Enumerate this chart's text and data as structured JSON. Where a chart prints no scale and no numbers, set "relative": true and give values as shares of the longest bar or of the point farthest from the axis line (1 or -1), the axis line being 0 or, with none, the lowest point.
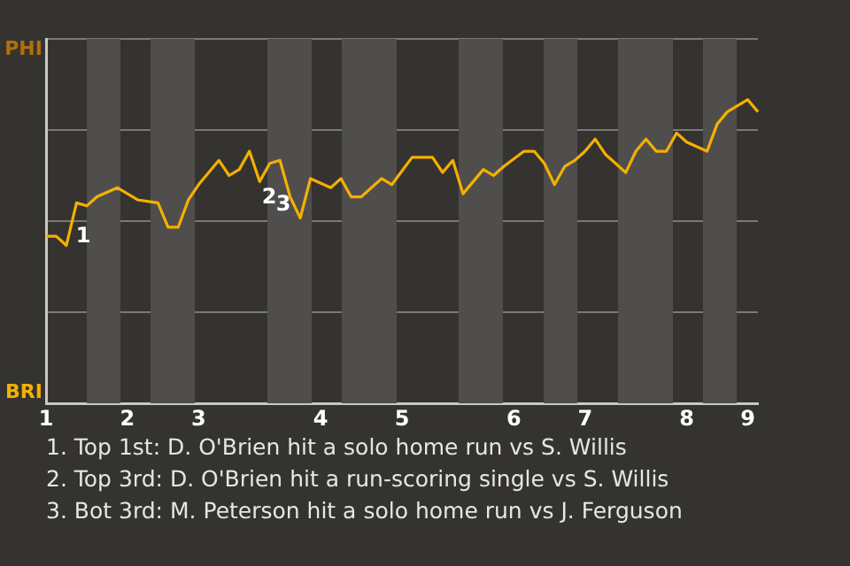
{
  "chart_data": {
    "type": "line",
    "categories": [
      "1",
      null,
      null,
      null,
      null,
      null,
      null,
      null,
      "2",
      null,
      null,
      null,
      null,
      null,
      null,
      "3",
      null,
      null,
      null,
      null,
      null,
      null,
      null,
      null,
      null,
      null,
      null,
      "4",
      null,
      null,
      null,
      null,
      null,
      null,
      null,
      "5",
      null,
      null,
      null,
      null,
      null,
      null,
      null,
      null,
      null,
      null,
      "6",
      null,
      null,
      null,
      null,
      null,
      null,
      "7",
      null,
      null,
      null,
      null,
      null,
      null,
      null,
      null,
      null,
      "8",
      null,
      null,
      null,
      null,
      null,
      "9",
      null
    ],
    "relative": true,
    "grid": "y",
    "marker": "none",
    "series": [
      {
        "color": "#f5b000",
        "values": [
          0.55,
          0.55,
          0.52,
          0.66,
          0.65,
          0.68,
          null,
          0.71,
          null,
          0.67,
          null,
          0.66,
          0.58,
          0.58,
          0.67,
          0.72,
          null,
          0.8,
          0.75,
          0.77,
          0.83,
          0.73,
          0.79,
          0.8,
          0.68,
          0.61,
          0.74,
          null,
          0.71,
          0.74,
          0.68,
          0.68,
          null,
          0.74,
          0.72,
          null,
          0.81,
          null,
          0.81,
          0.76,
          0.8,
          0.69,
          0.73,
          0.77,
          0.75,
          0.78,
          null,
          0.83,
          0.83,
          0.79,
          0.72,
          0.78,
          0.8,
          0.83,
          0.87,
          0.82,
          0.79,
          0.76,
          0.83,
          0.87,
          0.83,
          0.83,
          0.89,
          0.86,
          null,
          0.83,
          0.92,
          0.96,
          null,
          1,
          0.96
        ]
      }
    ],
    "annotations": [
      "PHI",
      "BRI",
      "1",
      "2",
      "3",
      "1. Top 1st: D. O'Brien hit a solo home run vs S. Willis",
      "2. Top 3rd: D. O'Brien hit a run-scoring single vs S. Willis",
      "3. Bot 3rd: M. Peterson hit a solo home run vs J. Ferguson"
    ]
  }
}
